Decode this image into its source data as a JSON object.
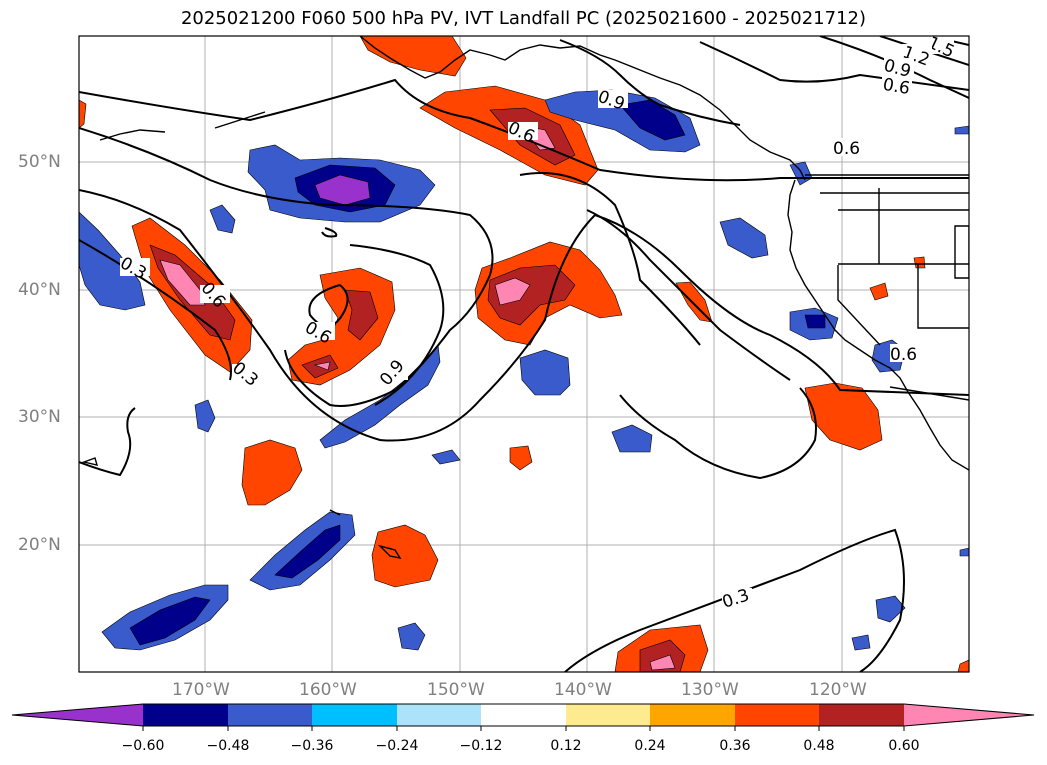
{
  "title": "2025021200 F060 500 hPa PV, IVT Landfall PC (2025021600 - 2025021712)",
  "lat_labels": [
    "50°N",
    "40°N",
    "30°N",
    "20°N"
  ],
  "lon_labels": [
    "170°W",
    "160°W",
    "150°W",
    "140°W",
    "130°W",
    "120°W"
  ],
  "contour_labels": [
    "1.5",
    "1.2",
    "0.9",
    "0.6",
    "0.9",
    "0.6",
    "0.6",
    "0.3",
    "0.6",
    "0.3",
    "0.6",
    "0.9",
    "0.6",
    "0.3"
  ],
  "colorbar": {
    "ticks": [
      "−0.60",
      "−0.48",
      "−0.36",
      "−0.24",
      "−0.12",
      "0.12",
      "0.24",
      "0.36",
      "0.48",
      "0.60"
    ],
    "colors": [
      "#9932CC",
      "#00008B",
      "#3A5BCC",
      "#00BFFF",
      "#ADE3FA",
      "#FFFFFF",
      "#FFEB8F",
      "#FFA500",
      "#FF4500",
      "#B22222",
      "#FF85B3"
    ]
  },
  "fill_colors": {
    "neg_light": "#ADE3FA",
    "neg_cyan": "#00BFFF",
    "neg_mid": "#3A5BCC",
    "neg_dark": "#00008B",
    "neg_purple": "#9932CC",
    "pos_yellow": "#FFEB8F",
    "pos_orange": "#FFA500",
    "pos_red": "#FF4500",
    "pos_dark": "#B22222",
    "pos_pink": "#FF85B3"
  }
}
